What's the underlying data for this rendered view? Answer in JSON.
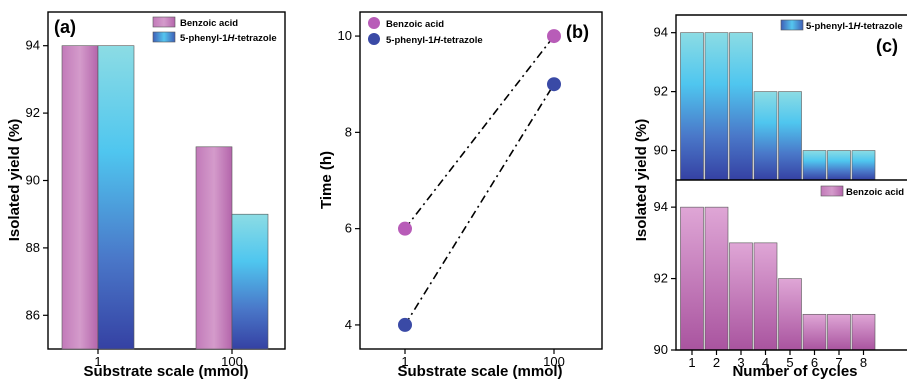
{
  "colors": {
    "benzoic": "#b665ad",
    "benzoic_light": "#d9a0cf",
    "tetrazole_top": "#7fd4e0",
    "tetrazole_mid": "#4fc3ec",
    "tetrazole_bottom": "#3b4aa8",
    "dot_benzoic": "#b85cb8",
    "dot_tetrazole": "#3a4aa6"
  },
  "chart_data": [
    {
      "panel": "(a)",
      "type": "bar",
      "xlabel": "Substrate scale (mmol)",
      "ylabel": "Isolated yield (%)",
      "ylim": [
        85,
        95
      ],
      "yticks": [
        86,
        88,
        90,
        92,
        94
      ],
      "categories": [
        "1",
        "100"
      ],
      "series": [
        {
          "name": "Benzoic acid",
          "values": [
            94,
            91
          ]
        },
        {
          "name": "5-phenyl-1H-tetrazole",
          "values": [
            94,
            89
          ]
        }
      ],
      "legend_position": "top-right"
    },
    {
      "panel": "(b)",
      "type": "scatter",
      "xlabel": "Substrate scale (mmol)",
      "ylabel": "Time (h)",
      "ylim": [
        3.5,
        10.5
      ],
      "yticks": [
        4,
        6,
        8,
        10
      ],
      "categories": [
        "1",
        "100"
      ],
      "series": [
        {
          "name": "Benzoic acid",
          "values": [
            6,
            10
          ]
        },
        {
          "name": "5-phenyl-1H-tetrazole",
          "values": [
            4,
            9
          ]
        }
      ],
      "legend_position": "top-left"
    },
    {
      "panel": "(c)",
      "type": "bar",
      "xlabel": "Number of cycles",
      "ylabel": "Isolated yield (%)",
      "categories": [
        "1",
        "2",
        "3",
        "4",
        "5",
        "6",
        "7",
        "8"
      ],
      "top": {
        "series_name": "5-phenyl-1H-tetrazole",
        "values": [
          94,
          94,
          94,
          92,
          92,
          90,
          90,
          90
        ],
        "ylim": [
          89.0,
          94.6
        ],
        "yticks": [
          90,
          92,
          94
        ]
      },
      "bottom": {
        "series_name": "Benzoic acid",
        "values": [
          94,
          94,
          93,
          93,
          92,
          91,
          91,
          91
        ],
        "ylim": [
          90,
          94.2
        ],
        "yticks": [
          90,
          92,
          94
        ]
      },
      "legend_position": "top-right"
    }
  ]
}
